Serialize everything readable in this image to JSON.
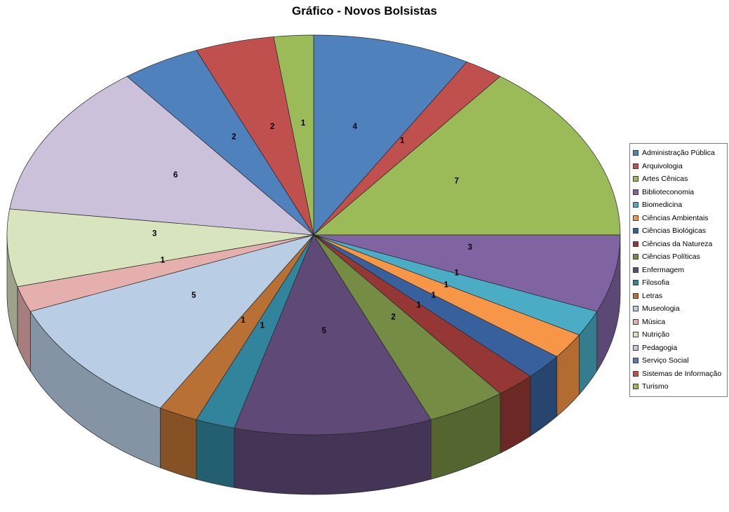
{
  "title": "Gráfico - Novos Bolsistas",
  "chart_data": {
    "type": "pie",
    "is_3d": true,
    "title": "Gráfico - Novos Bolsistas",
    "legend_position": "right",
    "labels_shown": "values",
    "start_angle_deg": 0,
    "direction": "clockwise",
    "total": 48,
    "series": [
      {
        "name": "Administração Pública",
        "value": 4,
        "color": "#4F81BD"
      },
      {
        "name": "Arquivologia",
        "value": 1,
        "color": "#C0504D"
      },
      {
        "name": "Artes Cênicas",
        "value": 7,
        "color": "#9BBB59"
      },
      {
        "name": "Biblioteconomia",
        "value": 3,
        "color": "#8064A2"
      },
      {
        "name": "Biomedicina",
        "value": 1,
        "color": "#4BACC6"
      },
      {
        "name": "Ciências Ambientais",
        "value": 1,
        "color": "#F79646"
      },
      {
        "name": "Ciências Biológicas",
        "value": 1,
        "color": "#38609C"
      },
      {
        "name": "Ciências da Natureza",
        "value": 1,
        "color": "#953734"
      },
      {
        "name": "Ciências Políticas",
        "value": 2,
        "color": "#748C43"
      },
      {
        "name": "Enfermagem",
        "value": 5,
        "color": "#5F4A77"
      },
      {
        "name": "Filosofia",
        "value": 1,
        "color": "#31849B"
      },
      {
        "name": "Letras",
        "value": 1,
        "color": "#B97034"
      },
      {
        "name": "Museologia",
        "value": 5,
        "color": "#B9CDE5"
      },
      {
        "name": "Música",
        "value": 1,
        "color": "#E5AFAD"
      },
      {
        "name": "Nutrição",
        "value": 3,
        "color": "#D7E4BD"
      },
      {
        "name": "Pedagogia",
        "value": 6,
        "color": "#CCC1DA"
      },
      {
        "name": "Serviço Social",
        "value": 2,
        "color": "#4F81BD"
      },
      {
        "name": "Sistemas de Informação",
        "value": 2,
        "color": "#C0504D"
      },
      {
        "name": "Turismo",
        "value": 1,
        "color": "#9BBB59"
      }
    ]
  },
  "legend": {
    "border_color": "#7F7F7F",
    "background": "#FFFFFF"
  }
}
